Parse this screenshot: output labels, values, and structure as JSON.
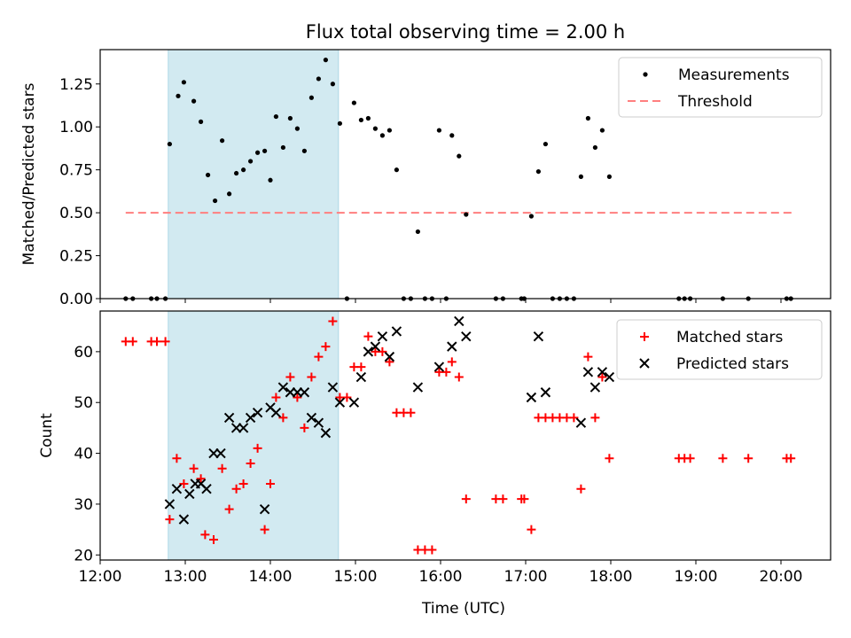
{
  "figure_title": "Flux total observing time = 2.00 h",
  "colors": {
    "measurement": "#000000",
    "threshold": "#ff7f7f",
    "matched": "#ff0000",
    "predicted": "#000000",
    "shade": "#add8e6"
  },
  "chart_data": [
    {
      "type": "scatter",
      "ylabel": "Matched/Predicted stars",
      "ylim": [
        0,
        1.45
      ],
      "yticks": [
        "0.00",
        "0.25",
        "0.50",
        "0.75",
        "1.00",
        "1.25"
      ],
      "ytick_values": [
        0,
        0.25,
        0.5,
        0.75,
        1.0,
        1.25
      ],
      "shaded_interval": [
        "12:48",
        "14:48"
      ],
      "legend_position": "top-right",
      "grid": false,
      "series": [
        {
          "name": "Measurements",
          "marker": "dot",
          "points": [
            [
              "12:18",
              0.0
            ],
            [
              "12:23",
              0.0
            ],
            [
              "12:36",
              0.0
            ],
            [
              "12:40",
              0.0
            ],
            [
              "12:46",
              0.0
            ],
            [
              "12:49",
              0.9
            ],
            [
              "12:55",
              1.18
            ],
            [
              "12:59",
              1.26
            ],
            [
              "13:06",
              1.15
            ],
            [
              "13:11",
              1.03
            ],
            [
              "13:16",
              0.72
            ],
            [
              "13:21",
              0.57
            ],
            [
              "13:26",
              0.92
            ],
            [
              "13:31",
              0.61
            ],
            [
              "13:36",
              0.73
            ],
            [
              "13:41",
              0.75
            ],
            [
              "13:46",
              0.8
            ],
            [
              "13:51",
              0.85
            ],
            [
              "13:56",
              0.86
            ],
            [
              "14:00",
              0.69
            ],
            [
              "14:04",
              1.06
            ],
            [
              "14:09",
              0.88
            ],
            [
              "14:14",
              1.05
            ],
            [
              "14:19",
              0.99
            ],
            [
              "14:24",
              0.86
            ],
            [
              "14:29",
              1.17
            ],
            [
              "14:34",
              1.28
            ],
            [
              "14:39",
              1.39
            ],
            [
              "14:44",
              1.25
            ],
            [
              "14:49",
              1.02
            ],
            [
              "14:54",
              0.0
            ],
            [
              "14:59",
              1.14
            ],
            [
              "15:04",
              1.04
            ],
            [
              "15:09",
              1.05
            ],
            [
              "15:14",
              0.99
            ],
            [
              "15:19",
              0.95
            ],
            [
              "15:24",
              0.98
            ],
            [
              "15:29",
              0.75
            ],
            [
              "15:34",
              0.0
            ],
            [
              "15:39",
              0.0
            ],
            [
              "15:44",
              0.39
            ],
            [
              "15:49",
              0.0
            ],
            [
              "15:54",
              0.0
            ],
            [
              "15:59",
              0.98
            ],
            [
              "16:04",
              0.0
            ],
            [
              "16:08",
              0.95
            ],
            [
              "16:13",
              0.83
            ],
            [
              "16:18",
              0.49
            ],
            [
              "16:39",
              0.0
            ],
            [
              "16:44",
              0.0
            ],
            [
              "16:57",
              0.0
            ],
            [
              "16:59",
              0.0
            ],
            [
              "17:04",
              0.48
            ],
            [
              "17:09",
              0.74
            ],
            [
              "17:14",
              0.9
            ],
            [
              "17:19",
              0.0
            ],
            [
              "17:24",
              0.0
            ],
            [
              "17:29",
              0.0
            ],
            [
              "17:34",
              0.0
            ],
            [
              "17:39",
              0.71
            ],
            [
              "17:44",
              1.05
            ],
            [
              "17:49",
              0.88
            ],
            [
              "17:54",
              0.98
            ],
            [
              "17:59",
              0.71
            ],
            [
              "18:48",
              0.0
            ],
            [
              "18:52",
              0.0
            ],
            [
              "18:56",
              0.0
            ],
            [
              "19:19",
              0.0
            ],
            [
              "19:37",
              0.0
            ],
            [
              "20:04",
              0.0
            ],
            [
              "20:07",
              0.0
            ]
          ]
        },
        {
          "name": "Threshold",
          "marker": "dashed-line",
          "x_range": [
            "12:18",
            "20:10"
          ],
          "value": 0.5
        }
      ]
    },
    {
      "type": "scatter",
      "xlabel": "Time (UTC)",
      "ylabel": "Count",
      "ylim": [
        19,
        68
      ],
      "yticks": [
        "20",
        "30",
        "40",
        "50",
        "60"
      ],
      "ytick_values": [
        20,
        30,
        40,
        50,
        60
      ],
      "xlim": [
        "12:00",
        "20:35"
      ],
      "xticks": [
        "12:00",
        "13:00",
        "14:00",
        "15:00",
        "16:00",
        "17:00",
        "18:00",
        "19:00",
        "20:00"
      ],
      "shaded_interval": [
        "12:48",
        "14:48"
      ],
      "legend_position": "top-right",
      "grid": false,
      "series": [
        {
          "name": "Matched stars",
          "marker": "plus",
          "points": [
            [
              "12:18",
              62
            ],
            [
              "12:23",
              62
            ],
            [
              "12:36",
              62
            ],
            [
              "12:40",
              62
            ],
            [
              "12:46",
              62
            ],
            [
              "12:49",
              27
            ],
            [
              "12:54",
              39
            ],
            [
              "12:59",
              34
            ],
            [
              "13:06",
              37
            ],
            [
              "13:11",
              35
            ],
            [
              "13:14",
              24
            ],
            [
              "13:20",
              23
            ],
            [
              "13:26",
              37
            ],
            [
              "13:31",
              29
            ],
            [
              "13:36",
              33
            ],
            [
              "13:41",
              34
            ],
            [
              "13:46",
              38
            ],
            [
              "13:51",
              41
            ],
            [
              "13:56",
              25
            ],
            [
              "14:00",
              34
            ],
            [
              "14:04",
              51
            ],
            [
              "14:09",
              47
            ],
            [
              "14:14",
              55
            ],
            [
              "14:19",
              51
            ],
            [
              "14:24",
              45
            ],
            [
              "14:29",
              55
            ],
            [
              "14:34",
              59
            ],
            [
              "14:39",
              61
            ],
            [
              "14:44",
              66
            ],
            [
              "14:49",
              51
            ],
            [
              "14:54",
              51
            ],
            [
              "14:59",
              57
            ],
            [
              "15:04",
              57
            ],
            [
              "15:09",
              63
            ],
            [
              "15:14",
              60
            ],
            [
              "15:19",
              60
            ],
            [
              "15:24",
              58
            ],
            [
              "15:29",
              48
            ],
            [
              "15:34",
              48
            ],
            [
              "15:39",
              48
            ],
            [
              "15:44",
              21
            ],
            [
              "15:49",
              21
            ],
            [
              "15:54",
              21
            ],
            [
              "15:59",
              56
            ],
            [
              "16:04",
              56
            ],
            [
              "16:08",
              58
            ],
            [
              "16:13",
              55
            ],
            [
              "16:18",
              31
            ],
            [
              "16:39",
              31
            ],
            [
              "16:44",
              31
            ],
            [
              "16:57",
              31
            ],
            [
              "16:59",
              31
            ],
            [
              "17:04",
              25
            ],
            [
              "17:09",
              47
            ],
            [
              "17:14",
              47
            ],
            [
              "17:19",
              47
            ],
            [
              "17:24",
              47
            ],
            [
              "17:29",
              47
            ],
            [
              "17:34",
              47
            ],
            [
              "17:39",
              33
            ],
            [
              "17:44",
              59
            ],
            [
              "17:49",
              47
            ],
            [
              "17:54",
              55
            ],
            [
              "17:59",
              39
            ],
            [
              "18:48",
              39
            ],
            [
              "18:52",
              39
            ],
            [
              "18:56",
              39
            ],
            [
              "19:19",
              39
            ],
            [
              "19:37",
              39
            ],
            [
              "20:04",
              39
            ],
            [
              "20:07",
              39
            ]
          ]
        },
        {
          "name": "Predicted stars",
          "marker": "x",
          "points": [
            [
              "12:49",
              30
            ],
            [
              "12:54",
              33
            ],
            [
              "12:59",
              27
            ],
            [
              "13:03",
              32
            ],
            [
              "13:07",
              34
            ],
            [
              "13:11",
              34
            ],
            [
              "13:15",
              33
            ],
            [
              "13:20",
              40
            ],
            [
              "13:25",
              40
            ],
            [
              "13:31",
              47
            ],
            [
              "13:36",
              45
            ],
            [
              "13:41",
              45
            ],
            [
              "13:46",
              47
            ],
            [
              "13:51",
              48
            ],
            [
              "13:56",
              29
            ],
            [
              "14:00",
              49
            ],
            [
              "14:04",
              48
            ],
            [
              "14:09",
              53
            ],
            [
              "14:14",
              52
            ],
            [
              "14:19",
              52
            ],
            [
              "14:24",
              52
            ],
            [
              "14:29",
              47
            ],
            [
              "14:34",
              46
            ],
            [
              "14:39",
              44
            ],
            [
              "14:44",
              53
            ],
            [
              "14:49",
              50
            ],
            [
              "14:59",
              50
            ],
            [
              "15:04",
              55
            ],
            [
              "15:09",
              60
            ],
            [
              "15:14",
              61
            ],
            [
              "15:19",
              63
            ],
            [
              "15:24",
              59
            ],
            [
              "15:29",
              64
            ],
            [
              "15:44",
              53
            ],
            [
              "15:59",
              57
            ],
            [
              "16:08",
              61
            ],
            [
              "16:13",
              66
            ],
            [
              "16:18",
              63
            ],
            [
              "17:04",
              51
            ],
            [
              "17:09",
              63
            ],
            [
              "17:14",
              52
            ],
            [
              "17:39",
              46
            ],
            [
              "17:44",
              56
            ],
            [
              "17:49",
              53
            ],
            [
              "17:54",
              56
            ],
            [
              "17:59",
              55
            ]
          ]
        }
      ]
    }
  ]
}
